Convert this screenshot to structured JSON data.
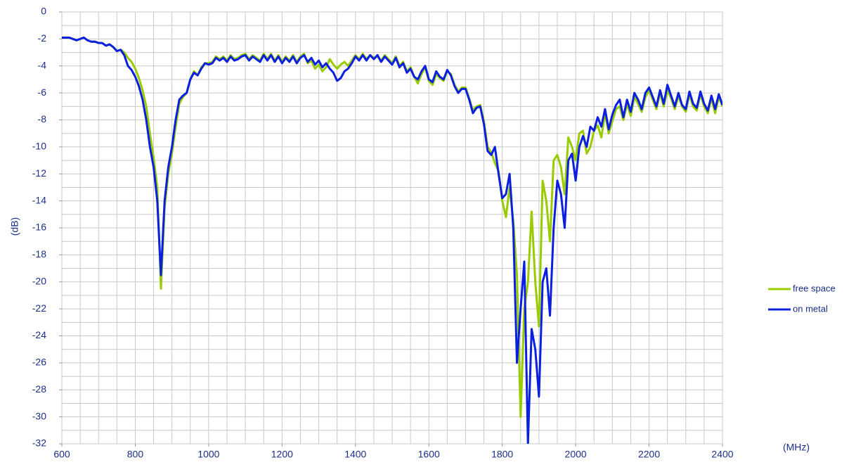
{
  "chart_data": {
    "type": "line",
    "x": [
      600,
      610,
      620,
      630,
      640,
      650,
      660,
      670,
      680,
      690,
      700,
      710,
      720,
      730,
      740,
      750,
      760,
      770,
      780,
      790,
      800,
      810,
      820,
      830,
      840,
      850,
      860,
      870,
      880,
      890,
      900,
      910,
      920,
      930,
      940,
      950,
      960,
      970,
      980,
      990,
      1000,
      1010,
      1020,
      1030,
      1040,
      1050,
      1060,
      1070,
      1080,
      1090,
      1100,
      1110,
      1120,
      1130,
      1140,
      1150,
      1160,
      1170,
      1180,
      1190,
      1200,
      1210,
      1220,
      1230,
      1240,
      1250,
      1260,
      1270,
      1280,
      1290,
      1300,
      1310,
      1320,
      1330,
      1340,
      1350,
      1360,
      1370,
      1380,
      1390,
      1400,
      1410,
      1420,
      1430,
      1440,
      1450,
      1460,
      1470,
      1480,
      1490,
      1500,
      1510,
      1520,
      1530,
      1540,
      1550,
      1560,
      1570,
      1580,
      1590,
      1600,
      1610,
      1620,
      1630,
      1640,
      1650,
      1660,
      1670,
      1680,
      1690,
      1700,
      1710,
      1720,
      1730,
      1740,
      1750,
      1760,
      1770,
      1780,
      1790,
      1800,
      1810,
      1820,
      1830,
      1840,
      1850,
      1860,
      1870,
      1880,
      1890,
      1900,
      1910,
      1920,
      1930,
      1940,
      1950,
      1960,
      1970,
      1980,
      1990,
      2000,
      2010,
      2020,
      2030,
      2040,
      2050,
      2060,
      2070,
      2080,
      2090,
      2100,
      2110,
      2120,
      2130,
      2140,
      2150,
      2160,
      2170,
      2180,
      2190,
      2200,
      2210,
      2220,
      2230,
      2240,
      2250,
      2260,
      2270,
      2280,
      2290,
      2300,
      2310,
      2320,
      2330,
      2340,
      2350,
      2360,
      2370,
      2380,
      2390,
      2400
    ],
    "series": [
      {
        "name": "free space",
        "color": "#99cc00",
        "values": [
          -1.9,
          -1.9,
          -1.9,
          -2.0,
          -2.1,
          -2.0,
          -1.9,
          -2.1,
          -2.2,
          -2.2,
          -2.3,
          -2.3,
          -2.5,
          -2.4,
          -2.6,
          -2.9,
          -2.8,
          -3.0,
          -3.4,
          -3.7,
          -4.2,
          -4.9,
          -5.8,
          -7.0,
          -9.0,
          -10.8,
          -13.0,
          -20.5,
          -14.5,
          -12.0,
          -10.5,
          -8.5,
          -6.8,
          -6.3,
          -6.0,
          -5.0,
          -4.4,
          -4.7,
          -4.1,
          -3.8,
          -3.8,
          -3.7,
          -3.3,
          -3.5,
          -3.3,
          -3.6,
          -3.2,
          -3.5,
          -3.4,
          -3.2,
          -3.1,
          -3.5,
          -3.2,
          -3.4,
          -3.6,
          -3.1,
          -3.5,
          -3.1,
          -3.6,
          -3.2,
          -3.7,
          -3.3,
          -3.6,
          -3.2,
          -3.7,
          -3.3,
          -3.1,
          -3.8,
          -3.6,
          -4.2,
          -3.9,
          -4.4,
          -4.1,
          -3.5,
          -3.9,
          -4.2,
          -3.9,
          -3.7,
          -4.0,
          -3.6,
          -3.2,
          -3.5,
          -3.1,
          -3.5,
          -3.2,
          -3.4,
          -3.3,
          -3.6,
          -3.2,
          -3.5,
          -3.8,
          -3.3,
          -4.0,
          -3.7,
          -4.4,
          -4.1,
          -4.8,
          -5.3,
          -4.6,
          -4.1,
          -5.1,
          -5.4,
          -4.6,
          -4.9,
          -5.1,
          -4.4,
          -4.6,
          -5.4,
          -5.9,
          -5.6,
          -5.6,
          -6.4,
          -7.3,
          -7.0,
          -6.9,
          -8.1,
          -10.0,
          -10.4,
          -11.2,
          -11.8,
          -14.0,
          -15.2,
          -13.0,
          -15.5,
          -19.5,
          -30.0,
          -22.0,
          -20.0,
          -14.8,
          -20.0,
          -23.3,
          -12.5,
          -14.0,
          -17.0,
          -11.0,
          -10.6,
          -11.5,
          -13.5,
          -9.3,
          -10.0,
          -11.0,
          -9.0,
          -8.8,
          -10.5,
          -10.0,
          -8.8,
          -8.4,
          -9.3,
          -7.5,
          -9.0,
          -8.1,
          -7.2,
          -7.0,
          -8.0,
          -6.8,
          -7.7,
          -6.3,
          -6.8,
          -7.4,
          -6.3,
          -5.8,
          -6.5,
          -7.2,
          -6.0,
          -7.0,
          -5.8,
          -6.4,
          -7.2,
          -6.2,
          -7.0,
          -7.4,
          -6.1,
          -7.0,
          -7.3,
          -6.1,
          -7.0,
          -7.5,
          -6.4,
          -7.5,
          -6.3,
          -7.0
        ]
      },
      {
        "name": "on metal",
        "color": "#0a1fe0",
        "values": [
          -1.9,
          -1.9,
          -1.9,
          -2.0,
          -2.1,
          -2.0,
          -1.9,
          -2.1,
          -2.2,
          -2.2,
          -2.3,
          -2.3,
          -2.5,
          -2.4,
          -2.6,
          -2.9,
          -2.8,
          -3.2,
          -4.0,
          -4.3,
          -4.8,
          -5.5,
          -6.5,
          -8.0,
          -10.0,
          -11.5,
          -14.0,
          -19.5,
          -14.0,
          -11.5,
          -10.0,
          -8.0,
          -6.5,
          -6.2,
          -6.0,
          -5.0,
          -4.5,
          -4.7,
          -4.2,
          -3.8,
          -3.9,
          -3.8,
          -3.4,
          -3.6,
          -3.4,
          -3.7,
          -3.3,
          -3.6,
          -3.5,
          -3.3,
          -3.2,
          -3.6,
          -3.3,
          -3.5,
          -3.7,
          -3.2,
          -3.6,
          -3.2,
          -3.7,
          -3.3,
          -3.8,
          -3.4,
          -3.7,
          -3.3,
          -3.8,
          -3.4,
          -3.2,
          -3.7,
          -3.4,
          -3.9,
          -3.6,
          -4.1,
          -3.8,
          -4.2,
          -4.5,
          -5.1,
          -4.9,
          -4.4,
          -4.2,
          -3.8,
          -3.3,
          -3.6,
          -3.2,
          -3.6,
          -3.2,
          -3.5,
          -3.2,
          -3.7,
          -3.3,
          -3.6,
          -3.9,
          -3.4,
          -4.1,
          -3.8,
          -4.5,
          -4.2,
          -4.8,
          -5.0,
          -4.4,
          -4.0,
          -5.0,
          -5.2,
          -4.4,
          -4.8,
          -5.0,
          -4.3,
          -4.7,
          -5.5,
          -6.0,
          -5.7,
          -5.7,
          -6.5,
          -7.5,
          -7.1,
          -7.0,
          -8.3,
          -10.3,
          -10.6,
          -10.0,
          -12.0,
          -13.8,
          -13.5,
          -12.0,
          -16.0,
          -26.0,
          -22.0,
          -18.5,
          -32.0,
          -23.5,
          -25.0,
          -28.5,
          -20.0,
          -19.0,
          -22.5,
          -16.0,
          -12.5,
          -13.5,
          -16.0,
          -11.0,
          -10.5,
          -12.5,
          -10.0,
          -9.2,
          -10.0,
          -8.5,
          -8.8,
          -7.8,
          -8.5,
          -7.2,
          -8.7,
          -7.6,
          -6.9,
          -6.5,
          -7.8,
          -6.5,
          -7.4,
          -6.0,
          -6.5,
          -7.2,
          -6.0,
          -5.6,
          -6.3,
          -7.0,
          -5.8,
          -6.8,
          -5.4,
          -6.2,
          -7.0,
          -6.0,
          -6.9,
          -7.2,
          -5.9,
          -6.8,
          -7.1,
          -5.9,
          -6.8,
          -7.3,
          -6.2,
          -7.2,
          -6.1,
          -6.9
        ]
      }
    ],
    "ylabel": "(dB)",
    "xlabel": "(MHz)",
    "xlim": [
      600,
      2400
    ],
    "xticks": [
      600,
      800,
      1000,
      1200,
      1400,
      1600,
      1800,
      2000,
      2200,
      2400
    ],
    "ylim": [
      -32,
      0
    ],
    "yticks": [
      0,
      -2,
      -4,
      -6,
      -8,
      -10,
      -12,
      -14,
      -16,
      -18,
      -20,
      -22,
      -24,
      -26,
      -28,
      -30,
      -32
    ],
    "grid": true,
    "xminor": 50,
    "yminor": 1,
    "legend": "right"
  }
}
